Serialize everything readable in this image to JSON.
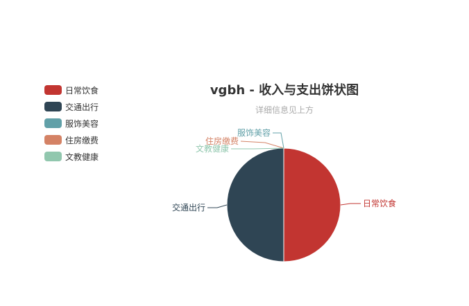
{
  "chart_data": {
    "type": "pie",
    "title": "vgbh - 收入与支出饼状图",
    "subtitle": "详细信息见上方",
    "legend_position": "top-left",
    "slices": [
      {
        "name": "日常饮食",
        "value": 1,
        "color": "#c23531"
      },
      {
        "name": "交通出行",
        "value": 1,
        "color": "#2f4554"
      },
      {
        "name": "服饰美容",
        "value": 0,
        "color": "#61a0a8"
      },
      {
        "name": "住房缴费",
        "value": 0,
        "color": "#d48265"
      },
      {
        "name": "文教健康",
        "value": 0,
        "color": "#91c7ae"
      }
    ]
  }
}
